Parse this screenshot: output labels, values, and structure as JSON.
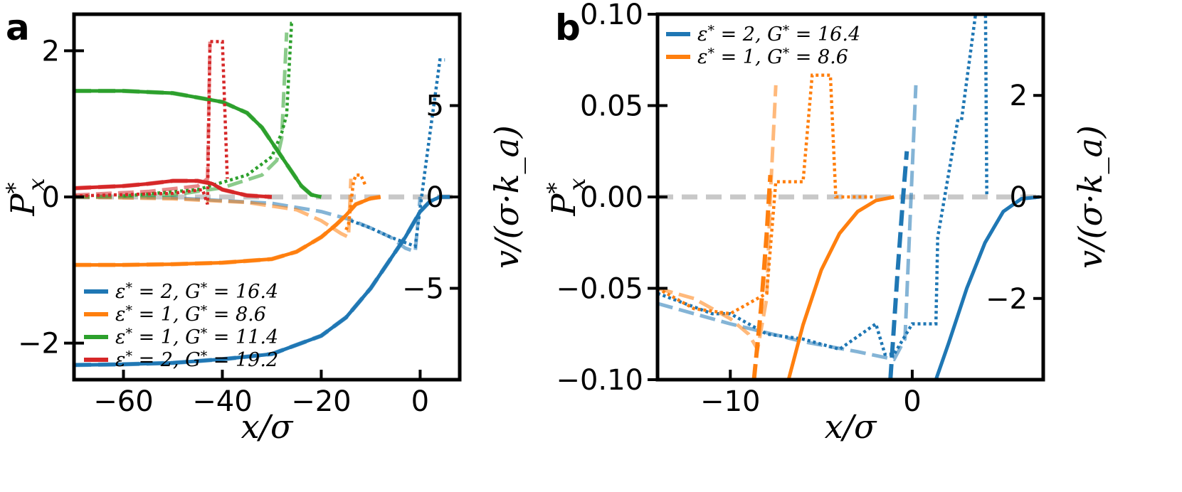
{
  "chart_data": [
    {
      "id": "a",
      "type": "line",
      "panel_label": "a",
      "xlabel": "x/σ",
      "ylabel": "P*x",
      "ylabel_right": "v/(σ·k_a)",
      "xlim": [
        -70,
        8
      ],
      "ylim": [
        -2.5,
        2.5
      ],
      "ylim_right": [
        -10,
        10
      ],
      "xticks": [
        -60,
        -40,
        -20,
        0
      ],
      "yticks": [
        -2,
        0,
        2
      ],
      "yticks_right": [
        -5,
        0,
        5
      ],
      "xtick_labels": [
        "−60",
        "−40",
        "−20",
        "0"
      ],
      "ytick_labels": [
        "−2",
        "0",
        "2"
      ],
      "ytick_labels_right": [
        "−5",
        "0",
        "5"
      ],
      "legend_position": "lower-left",
      "series": [
        {
          "name": "ε* = 2, G* = 16.4",
          "label_eps": "ε",
          "label_eps_val": "2",
          "label_g": "G",
          "label_g_val": "16.4",
          "color": "#1f77b4",
          "solid_x": [
            -70,
            -60,
            -50,
            -40,
            -30,
            -20,
            -15,
            -10,
            -6,
            -3,
            0,
            2,
            4,
            6
          ],
          "solid_y": [
            -2.3,
            -2.29,
            -2.27,
            -2.22,
            -2.15,
            -1.9,
            -1.65,
            -1.25,
            -0.85,
            -0.55,
            -0.2,
            -0.06,
            0.0,
            0.0
          ],
          "dashed_right_x": [
            -70,
            -50,
            -30,
            -20,
            -14,
            -10,
            -6,
            -3,
            -1,
            0
          ],
          "dashed_right_y": [
            0,
            -0.05,
            -0.35,
            -0.8,
            -1.25,
            -1.7,
            -2.2,
            -2.8,
            -3.0,
            0
          ],
          "dotted_right_x": [
            -14,
            -10,
            -6,
            -3,
            -1,
            1,
            2,
            3,
            4,
            5
          ],
          "dotted_right_y": [
            -1.3,
            -1.7,
            -2.2,
            -2.5,
            -2.7,
            1.5,
            3.5,
            5.5,
            7.5,
            7.5
          ]
        },
        {
          "name": "ε* = 1, G* = 8.6",
          "label_eps": "ε",
          "label_eps_val": "1",
          "label_g": "G",
          "label_g_val": "8.6",
          "color": "#ff7f0e",
          "solid_x": [
            -70,
            -60,
            -50,
            -40,
            -30,
            -25,
            -20,
            -17,
            -15,
            -13,
            -10,
            -8
          ],
          "solid_y": [
            -0.93,
            -0.93,
            -0.92,
            -0.9,
            -0.85,
            -0.75,
            -0.55,
            -0.38,
            -0.25,
            -0.1,
            -0.02,
            0.0
          ],
          "dashed_right_x": [
            -70,
            -50,
            -35,
            -25,
            -20,
            -16,
            -14.5,
            -14
          ],
          "dashed_right_y": [
            0,
            -0.1,
            -0.3,
            -0.7,
            -1.3,
            -2.0,
            -2.2,
            1.0
          ],
          "dotted_right_x": [
            -15,
            -14.5,
            -13.5,
            -13,
            -12,
            -11
          ],
          "dotted_right_y": [
            -1.8,
            -1.5,
            0.8,
            1.2,
            1.2,
            0.6
          ]
        },
        {
          "name": "ε* = 1, G* = 11.4",
          "label_eps": "ε",
          "label_eps_val": "1",
          "label_g": "G",
          "label_g_val": "11.4",
          "color": "#2ca02c",
          "solid_x": [
            -70,
            -60,
            -50,
            -40,
            -35,
            -32,
            -30,
            -28,
            -26,
            -24,
            -22,
            -20
          ],
          "solid_y": [
            1.45,
            1.45,
            1.42,
            1.3,
            1.15,
            0.95,
            0.75,
            0.55,
            0.35,
            0.15,
            0.03,
            0.0
          ],
          "dashed_right_x": [
            -70,
            -50,
            -40,
            -32,
            -29,
            -28,
            -27
          ],
          "dashed_right_y": [
            0,
            0.1,
            0.5,
            1.2,
            2.0,
            3.2,
            9.0
          ],
          "dotted_right_x": [
            -60,
            -45,
            -35,
            -30,
            -28,
            -27,
            -26,
            -25.5
          ],
          "dotted_right_y": [
            0.05,
            0.4,
            1.2,
            2.2,
            3.5,
            4.5,
            9.5,
            9.5
          ]
        },
        {
          "name": "ε* = 2, G* = 19.2",
          "label_eps": "ε",
          "label_eps_val": "2",
          "label_g": "G",
          "label_g_val": "19.2",
          "color": "#d62728",
          "solid_x": [
            -70,
            -60,
            -55,
            -50,
            -45,
            -42,
            -40,
            -35,
            -30
          ],
          "solid_y": [
            0.12,
            0.15,
            0.18,
            0.22,
            0.22,
            0.18,
            0.1,
            0.02,
            0.0
          ],
          "dashed_right_x": [
            -70,
            -55,
            -45,
            -43,
            -42.5
          ],
          "dashed_right_y": [
            0.1,
            0.3,
            0.6,
            1.0,
            8.5
          ],
          "dotted_right_x": [
            -70,
            -50,
            -44,
            -43,
            -42.5,
            -41,
            -40,
            -39
          ],
          "dotted_right_y": [
            0.05,
            0.2,
            0.4,
            -0.4,
            8.5,
            8.5,
            8.5,
            1.0
          ]
        }
      ]
    },
    {
      "id": "b",
      "type": "line",
      "panel_label": "b",
      "xlabel": "x/σ",
      "ylabel": "P*x",
      "ylabel_right": "v/(σ·k_a)",
      "xlim": [
        -14,
        7.2
      ],
      "ylim": [
        -0.1,
        0.1
      ],
      "ylim_right": [
        -3.6,
        3.6
      ],
      "xticks": [
        -10,
        0
      ],
      "yticks": [
        -0.1,
        -0.05,
        0.0,
        0.05,
        0.1
      ],
      "yticks_right": [
        -2,
        0,
        2
      ],
      "xtick_labels": [
        "−10",
        "0"
      ],
      "ytick_labels": [
        "−0.10",
        "−0.05",
        "0.00",
        "0.05",
        "0.10"
      ],
      "ytick_labels_right": [
        "−2",
        "0",
        "2"
      ],
      "legend_position": "top-left",
      "series": [
        {
          "name": "ε* = 2, G* = 16.4",
          "label_eps": "ε",
          "label_eps_val": "2",
          "label_g": "G",
          "label_g_val": "16.4",
          "color": "#1f77b4",
          "solid_x": [
            1.3,
            2,
            3,
            4,
            5,
            6,
            7
          ],
          "solid_y": [
            -0.1,
            -0.08,
            -0.05,
            -0.025,
            -0.008,
            -0.001,
            0.0
          ],
          "dashed_right_x": [
            -14,
            -10,
            -6,
            -3,
            -1,
            -0.4,
            0.2
          ],
          "dashed_right_y": [
            -2.1,
            -2.5,
            -2.85,
            -3.05,
            -3.2,
            -2.8,
            2.2
          ],
          "dashed_x": [
            -1.2,
            -0.8,
            -0.5,
            -0.3
          ],
          "dashed_y": [
            -0.1,
            -0.04,
            0.0,
            0.025
          ],
          "dotted_right_x": [
            -14,
            -11,
            -10,
            -8,
            -6,
            -4,
            -2,
            -1.5,
            -1,
            0,
            1.3,
            1.4,
            2.5,
            2.7,
            4,
            4.1
          ],
          "dotted_right_y": [
            -1.9,
            -2.3,
            -2.3,
            -2.7,
            -2.8,
            -3.0,
            -2.5,
            -3.1,
            -3.1,
            -2.5,
            -2.5,
            -0.8,
            1.5,
            1.5,
            5,
            0
          ]
        },
        {
          "name": "ε* = 1, G* = 8.6",
          "label_eps": "ε",
          "label_eps_val": "1",
          "label_g": "G",
          "label_g_val": "8.6",
          "color": "#ff7f0e",
          "solid_x": [
            -6.8,
            -6,
            -5,
            -4,
            -3,
            -2,
            -1
          ],
          "solid_y": [
            -0.1,
            -0.07,
            -0.04,
            -0.02,
            -0.008,
            -0.002,
            0.0
          ],
          "dashed_right_x": [
            -14,
            -12,
            -10,
            -9,
            -8.5,
            -8,
            -7.8,
            -7.5
          ],
          "dashed_right_y": [
            -1.8,
            -2.0,
            -2.4,
            -2.7,
            -3.0,
            -2.0,
            0.0,
            2.2
          ],
          "dashed_x": [
            -8.7,
            -8.3,
            -8.0,
            -7.8
          ],
          "dashed_y": [
            -0.1,
            -0.06,
            -0.02,
            0.012
          ],
          "dotted_right_x": [
            -14,
            -12,
            -10,
            -8,
            -7.5,
            -6,
            -5.5,
            -4.5,
            -4.2,
            -2
          ],
          "dotted_right_y": [
            -1.8,
            -2.2,
            -2.3,
            -1.9,
            0.3,
            0.3,
            2.4,
            2.4,
            0.0,
            0.0
          ]
        }
      ]
    }
  ]
}
